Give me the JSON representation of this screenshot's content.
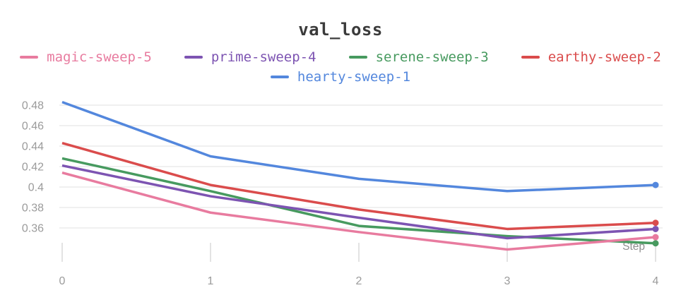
{
  "header": {
    "panel_title": "val_loss"
  },
  "chart_data": {
    "type": "line",
    "title": "val_loss",
    "xlabel": "Step",
    "ylabel": "",
    "x": [
      0,
      1,
      2,
      3,
      4
    ],
    "series": [
      {
        "name": "magic-sweep-5",
        "color": "#e87b9f",
        "values": [
          0.414,
          0.375,
          0.356,
          0.339,
          0.351
        ]
      },
      {
        "name": "prime-sweep-4",
        "color": "#7d54b2",
        "values": [
          0.421,
          0.391,
          0.37,
          0.35,
          0.359
        ]
      },
      {
        "name": "serene-sweep-3",
        "color": "#479a5f",
        "values": [
          0.428,
          0.396,
          0.362,
          0.352,
          0.345
        ]
      },
      {
        "name": "earthy-sweep-2",
        "color": "#da4c4c",
        "values": [
          0.443,
          0.402,
          0.378,
          0.359,
          0.365
        ]
      },
      {
        "name": "hearty-sweep-1",
        "color": "#5387dd",
        "values": [
          0.483,
          0.43,
          0.408,
          0.396,
          0.402
        ]
      }
    ],
    "draw_order": [
      4,
      2,
      0,
      1,
      3
    ],
    "end_marker": "dot",
    "yticks": [
      0.48,
      0.46,
      0.44,
      0.42,
      0.4,
      0.38,
      0.36
    ],
    "ytick_labels": [
      "0.48",
      "0.46",
      "0.44",
      "0.42",
      "0.4",
      "0.38",
      "0.36"
    ],
    "xtick_labels": [
      "0",
      "1",
      "2",
      "3",
      "4"
    ],
    "ylim": [
      0.333,
      0.49
    ],
    "xlim": [
      0,
      4
    ],
    "grid": true,
    "legend_position": "top",
    "legend_rows": [
      [
        "magic-sweep-5",
        "prime-sweep-4",
        "serene-sweep-3",
        "earthy-sweep-2"
      ],
      [
        "hearty-sweep-1"
      ]
    ],
    "title_color": "#3b3b3b",
    "tick_label_color": "#9b9b9b",
    "xlabel_color": "#8f8f8f",
    "grid_color": "#e7e7e7",
    "tick_mark_color": "#dcdcdc",
    "background_color": "#ffffff"
  }
}
